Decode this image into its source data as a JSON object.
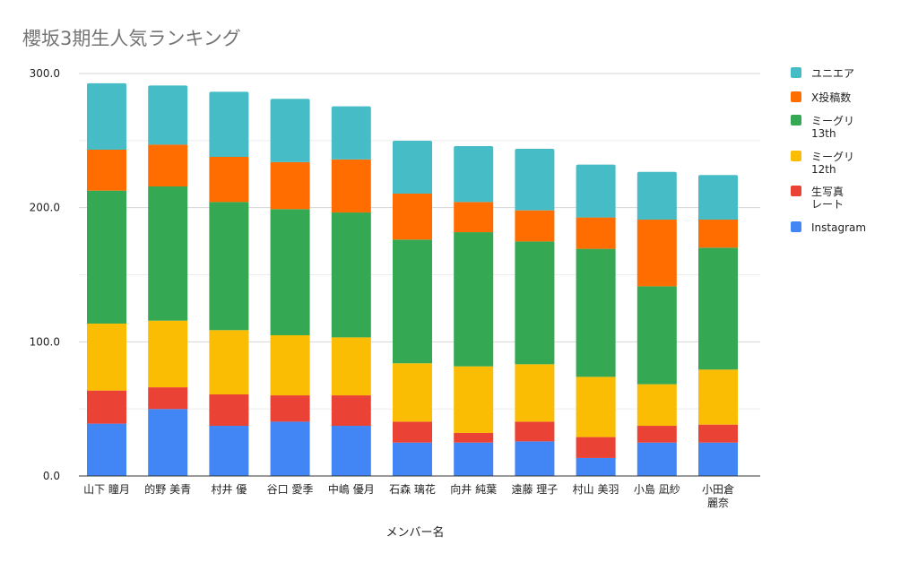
{
  "chart_data": {
    "type": "bar",
    "stacked": true,
    "title": "櫻坂3期生人気ランキング",
    "xlabel": "メンバー名",
    "ylabel": "",
    "ylim": [
      0,
      300
    ],
    "yticks": [
      "0.0",
      "100.0",
      "200.0",
      "300.0"
    ],
    "grid": true,
    "legend_position": "right",
    "categories": [
      "山下 瞳月",
      "的野 美青",
      "村井 優",
      "谷口 愛季",
      "中嶋 優月",
      "石森 璃花",
      "向井 純葉",
      "遠藤 理子",
      "村山 美羽",
      "小島 凪紗",
      "小田倉 麗奈"
    ],
    "series": [
      {
        "name": "Instagram",
        "color": "#4285f4",
        "values": [
          39.0,
          49.9,
          37.4,
          40.5,
          37.4,
          24.9,
          24.9,
          25.8,
          13.4,
          24.9,
          24.9
        ]
      },
      {
        "name": "生写真レート",
        "legend_lines": [
          "生写真",
          "レート"
        ],
        "color": "#ea4335",
        "values": [
          24.7,
          16.2,
          23.4,
          19.6,
          22.7,
          15.6,
          7.2,
          14.7,
          15.6,
          12.5,
          13.4
        ]
      },
      {
        "name": "ミーグリ12th",
        "legend_lines": [
          "ミーグリ",
          "12th"
        ],
        "color": "#fbbc04",
        "values": [
          49.9,
          49.7,
          47.9,
          44.8,
          43.2,
          43.5,
          49.6,
          42.8,
          44.9,
          31.0,
          41.0
        ]
      },
      {
        "name": "ミーグリ13th",
        "legend_lines": [
          "ミーグリ",
          "13th"
        ],
        "color": "#34a853",
        "values": [
          99.1,
          100.0,
          95.5,
          94.0,
          93.1,
          92.2,
          100.0,
          91.5,
          95.4,
          73.0,
          90.9
        ]
      },
      {
        "name": "X投稿数",
        "color": "#ff6d01",
        "values": [
          30.5,
          31.2,
          33.7,
          35.0,
          39.5,
          34.3,
          22.5,
          23.2,
          23.4,
          49.7,
          20.9
        ]
      },
      {
        "name": "ユニエア",
        "color": "#46bdc6",
        "values": [
          49.5,
          44.1,
          48.5,
          47.2,
          39.6,
          39.4,
          41.7,
          45.9,
          39.4,
          35.6,
          33.2
        ]
      }
    ]
  }
}
